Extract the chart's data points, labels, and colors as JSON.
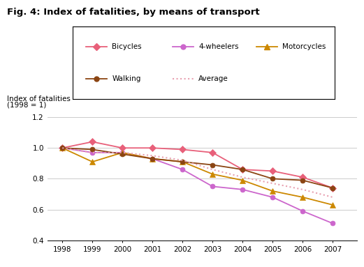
{
  "title": "Fig. 4: Index of fatalities, by means of transport",
  "ylabel_line1": "Index of fatalities",
  "ylabel_line2": "(1998 = 1)",
  "years": [
    1998,
    1999,
    2000,
    2001,
    2002,
    2003,
    2004,
    2005,
    2006,
    2007
  ],
  "bicycles": [
    1.0,
    1.04,
    1.0,
    1.0,
    0.99,
    0.97,
    0.86,
    0.85,
    0.81,
    0.74
  ],
  "four_wheelers": [
    1.0,
    0.97,
    0.97,
    0.93,
    0.86,
    0.75,
    0.73,
    0.68,
    0.59,
    0.51
  ],
  "motorcycles": [
    1.0,
    0.91,
    0.97,
    0.93,
    0.91,
    0.83,
    0.79,
    0.72,
    0.68,
    0.63
  ],
  "walking": [
    1.0,
    0.99,
    0.96,
    0.93,
    0.91,
    0.89,
    0.86,
    0.8,
    0.79,
    0.74
  ],
  "average": [
    1.0,
    0.97,
    0.97,
    0.95,
    0.92,
    0.86,
    0.81,
    0.77,
    0.73,
    0.68
  ],
  "color_bicycles": "#e8607a",
  "color_four_wheelers": "#cc66cc",
  "color_motorcycles": "#cc8800",
  "color_walking": "#8b4513",
  "color_average": "#e8a0b0",
  "ylim": [
    0.4,
    1.25
  ],
  "yticks": [
    0.4,
    0.6,
    0.8,
    1.0,
    1.2
  ],
  "legend_labels": [
    "Bicycles",
    "4-wheelers",
    "Motorcycles",
    "Walking",
    "Average"
  ]
}
